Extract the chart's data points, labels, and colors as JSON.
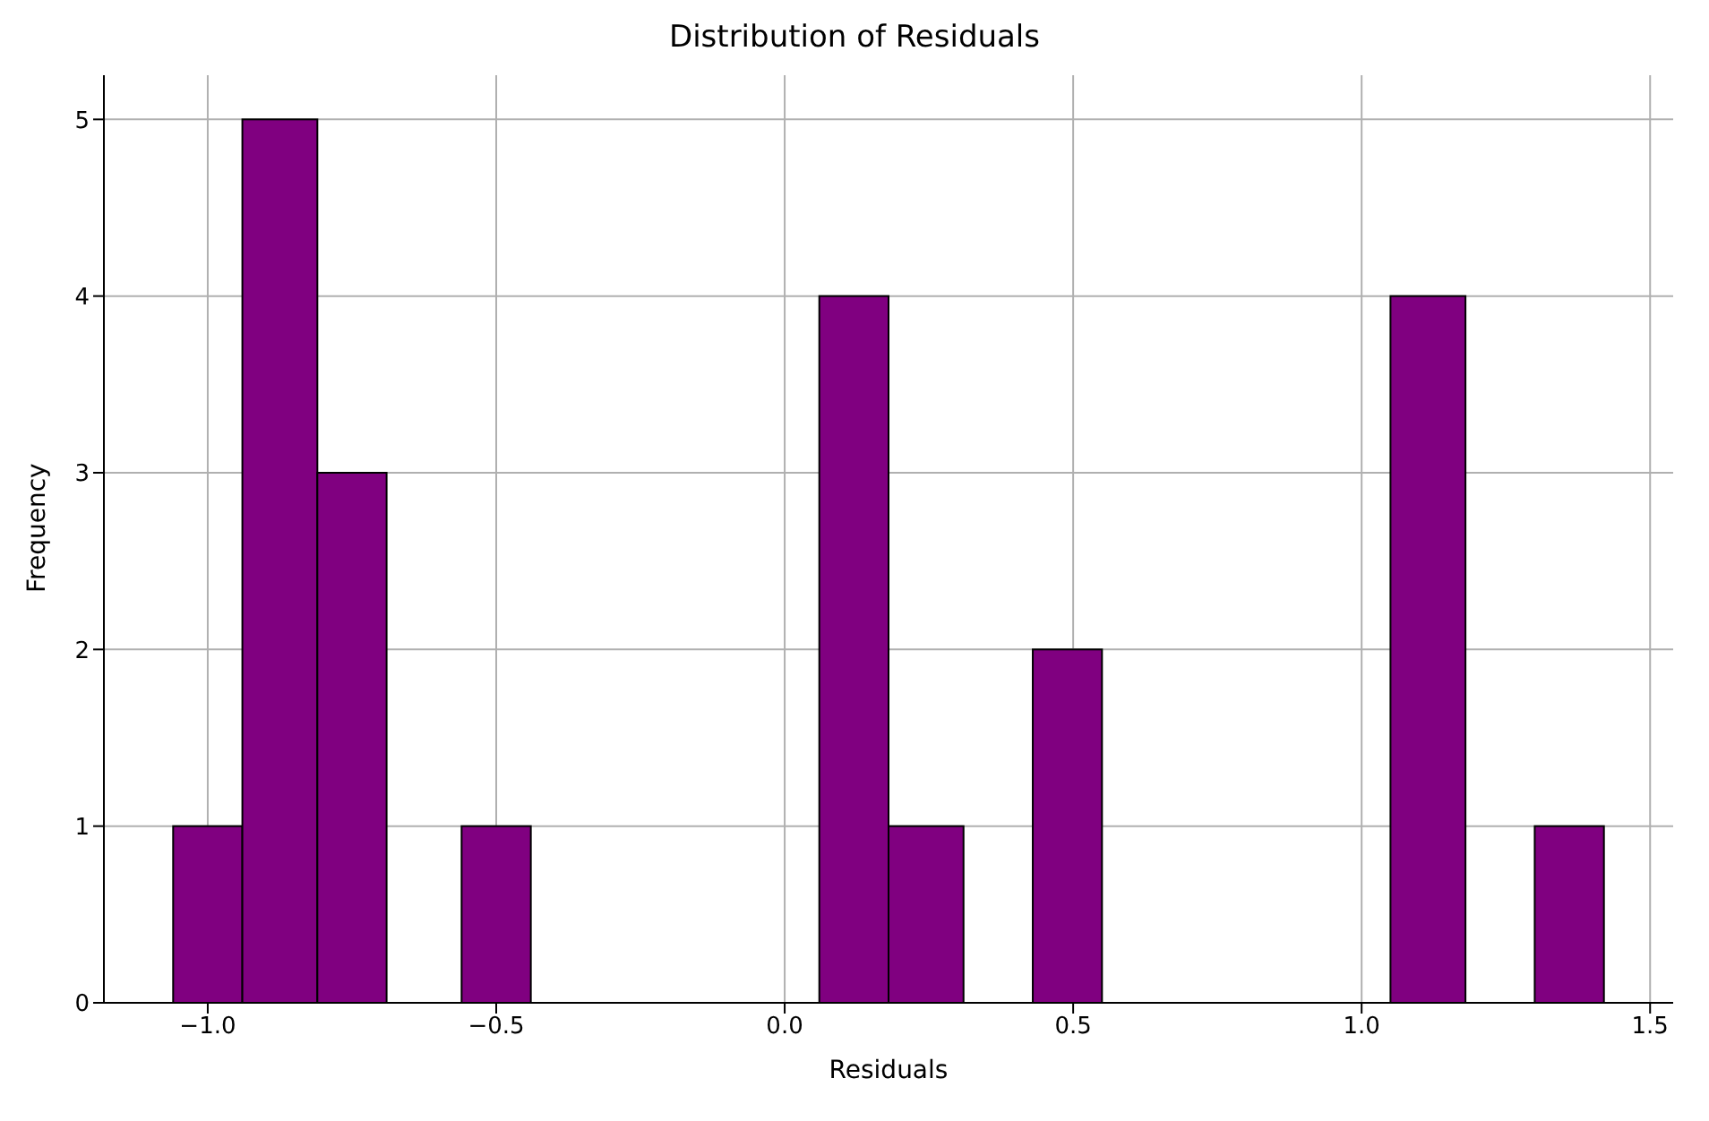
{
  "chart_data": {
    "type": "histogram",
    "title": "Distribution of Residuals",
    "xlabel": "Residuals",
    "ylabel": "Frequency",
    "bins": [
      -1.06,
      -0.94,
      -0.81,
      -0.69,
      -0.56,
      -0.44,
      0.06,
      0.18,
      0.31,
      0.43,
      0.55,
      1.05,
      1.18,
      1.3,
      1.42
    ],
    "values": [
      1,
      5,
      3,
      0,
      1,
      0,
      4,
      1,
      0,
      2,
      0,
      4,
      0,
      1
    ],
    "color": "#800080",
    "xlim": [
      -1.18,
      1.54
    ],
    "xticks": [
      {
        "value": -1.0,
        "label": "−1.0"
      },
      {
        "value": -0.5,
        "label": "−0.5"
      },
      {
        "value": 0,
        "label": "0.0"
      },
      {
        "value": 0.5,
        "label": "0.5"
      },
      {
        "value": 1,
        "label": "1.0"
      },
      {
        "value": 1.5,
        "label": "1.5"
      }
    ],
    "ylim": [
      0,
      5.25
    ],
    "yticks": [
      0,
      1,
      2,
      3,
      4,
      5
    ],
    "grid": true,
    "legend": false
  }
}
